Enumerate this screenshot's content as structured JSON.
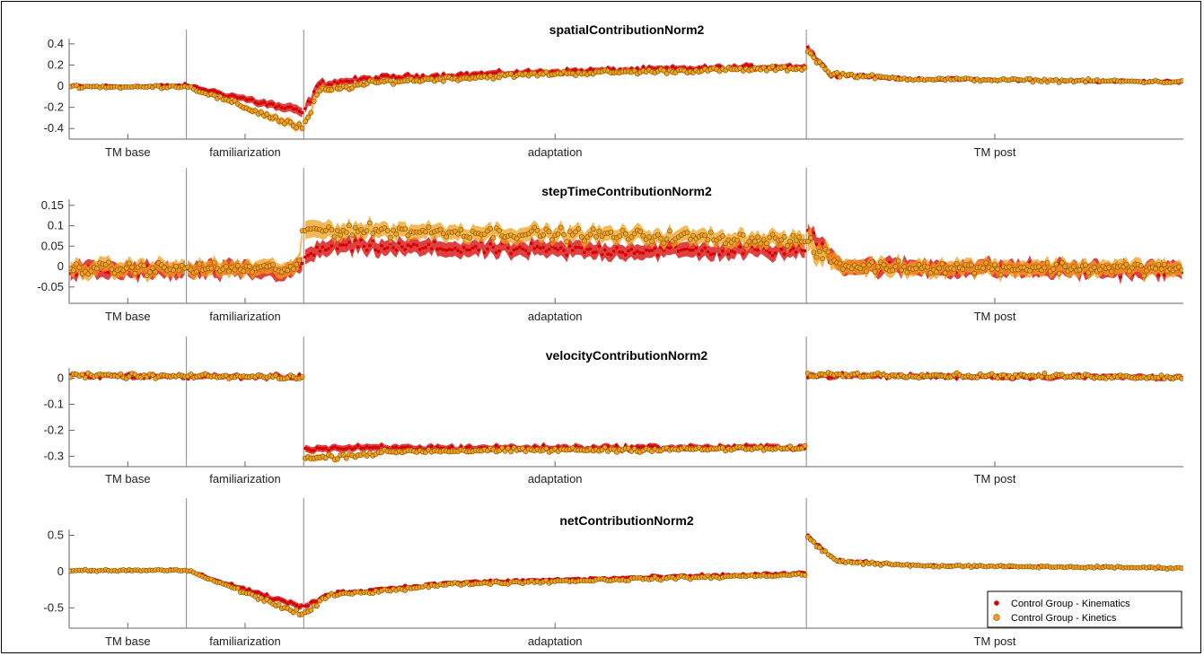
{
  "chart_data": [
    {
      "type": "scatter",
      "title": "spatialContributionNorm2",
      "ylim": [
        -0.5,
        0.45
      ],
      "yticks": [
        -0.4,
        -0.2,
        0,
        0.2,
        0.4
      ],
      "ytick_labels": [
        "-0.4",
        "-0.2",
        "0",
        "0.2",
        "0.4"
      ],
      "conditions": [
        "TM base",
        "familiarization",
        "adaptation",
        "TM post"
      ],
      "condition_strides": [
        140,
        140,
        600,
        450
      ],
      "series": [
        {
          "name": "Control Group - Kinematics",
          "color": "#d40000",
          "profile": [
            [
              0,
              0.0,
              0.02
            ],
            [
              0.5,
              0.0,
              0.02
            ],
            [
              0.7,
              0.0,
              0.02
            ],
            [
              1.0,
              0.01,
              0.02
            ],
            [
              2,
              -0.25,
              0.05
            ],
            [
              2.03,
              0.02,
              0.04
            ],
            [
              2.15,
              0.08,
              0.03
            ],
            [
              2.5,
              0.14,
              0.03
            ],
            [
              3.0,
              0.19,
              0.03
            ],
            [
              3.0,
              0.38,
              0.04
            ],
            [
              3.06,
              0.12,
              0.03
            ],
            [
              3.25,
              0.07,
              0.02
            ],
            [
              4.0,
              0.04,
              0.02
            ]
          ]
        },
        {
          "name": "Control Group - Kinetics",
          "color": "#f0a020",
          "profile": [
            [
              0,
              0.0,
              0.02
            ],
            [
              0.5,
              -0.01,
              0.02
            ],
            [
              1.0,
              0.0,
              0.02
            ],
            [
              2,
              -0.4,
              0.05
            ],
            [
              2.03,
              -0.05,
              0.04
            ],
            [
              2.15,
              0.04,
              0.03
            ],
            [
              2.5,
              0.12,
              0.03
            ],
            [
              3.0,
              0.17,
              0.03
            ],
            [
              3.0,
              0.35,
              0.04
            ],
            [
              3.06,
              0.12,
              0.03
            ],
            [
              3.25,
              0.07,
              0.02
            ],
            [
              4.0,
              0.04,
              0.02
            ]
          ]
        }
      ]
    },
    {
      "type": "scatter",
      "title": "stepTimeContributionNorm2",
      "ylim": [
        -0.09,
        0.165
      ],
      "yticks": [
        -0.05,
        0,
        0.05,
        0.1,
        0.15
      ],
      "ytick_labels": [
        "-0.05",
        "0",
        "0.05",
        "0.1",
        "0.15"
      ],
      "conditions": [
        "TM base",
        "familiarization",
        "adaptation",
        "TM post"
      ],
      "condition_strides": [
        140,
        140,
        600,
        450
      ],
      "series": [
        {
          "name": "Control Group - Kinematics",
          "color": "#d40000",
          "profile": [
            [
              0,
              -0.01,
              0.02
            ],
            [
              1.0,
              -0.01,
              0.02
            ],
            [
              1.95,
              -0.01,
              0.02
            ],
            [
              2,
              0.02,
              0.02
            ],
            [
              2.05,
              0.05,
              0.02
            ],
            [
              2.5,
              0.04,
              0.02
            ],
            [
              3.0,
              0.04,
              0.02
            ],
            [
              3.0,
              0.09,
              0.02
            ],
            [
              3.1,
              0.0,
              0.02
            ],
            [
              4.0,
              -0.01,
              0.02
            ]
          ]
        },
        {
          "name": "Control Group - Kinetics",
          "color": "#f0a020",
          "profile": [
            [
              0,
              -0.005,
              0.02
            ],
            [
              1.0,
              -0.005,
              0.02
            ],
            [
              1.95,
              -0.005,
              0.02
            ],
            [
              2,
              0.09,
              0.025
            ],
            [
              2.1,
              0.09,
              0.02
            ],
            [
              2.5,
              0.08,
              0.02
            ],
            [
              3.0,
              0.065,
              0.02
            ],
            [
              3.0,
              0.05,
              0.03
            ],
            [
              3.1,
              0.0,
              0.02
            ],
            [
              4.0,
              -0.005,
              0.02
            ]
          ]
        }
      ]
    },
    {
      "type": "scatter",
      "title": "velocityContributionNorm2",
      "ylim": [
        -0.34,
        0.04
      ],
      "yticks": [
        -0.3,
        -0.2,
        -0.1,
        0
      ],
      "ytick_labels": [
        "-0.3",
        "-0.2",
        "-0.1",
        "0"
      ],
      "conditions": [
        "TM base",
        "familiarization",
        "adaptation",
        "TM post"
      ],
      "condition_strides": [
        140,
        140,
        600,
        450
      ],
      "series": [
        {
          "name": "Control Group - Kinematics",
          "color": "#d40000",
          "profile": [
            [
              0,
              0.01,
              0.012
            ],
            [
              2.0,
              0.005,
              0.012
            ],
            [
              2,
              -0.27,
              0.015
            ],
            [
              3.0,
              -0.265,
              0.012
            ],
            [
              3.0,
              0.01,
              0.012
            ],
            [
              4.0,
              0.005,
              0.012
            ]
          ]
        },
        {
          "name": "Control Group - Kinetics",
          "color": "#f0a020",
          "profile": [
            [
              0,
              0.01,
              0.012
            ],
            [
              2.0,
              0.005,
              0.012
            ],
            [
              2,
              -0.31,
              0.015
            ],
            [
              2.2,
              -0.28,
              0.012
            ],
            [
              3.0,
              -0.27,
              0.012
            ],
            [
              3.0,
              0.015,
              0.012
            ],
            [
              4.0,
              0.005,
              0.012
            ]
          ]
        }
      ]
    },
    {
      "type": "scatter",
      "title": "netContributionNorm2",
      "ylim": [
        -0.78,
        0.58
      ],
      "yticks": [
        -0.5,
        0,
        0.5
      ],
      "ytick_labels": [
        "-0.5",
        "0",
        "0.5"
      ],
      "conditions": [
        "TM base",
        "familiarization",
        "adaptation",
        "TM post"
      ],
      "condition_strides": [
        140,
        140,
        600,
        450
      ],
      "series": [
        {
          "name": "Control Group - Kinematics",
          "color": "#d40000",
          "profile": [
            [
              0,
              0.01,
              0.02
            ],
            [
              1.0,
              0.02,
              0.02
            ],
            [
              2,
              -0.5,
              0.05
            ],
            [
              2.05,
              -0.3,
              0.03
            ],
            [
              2.3,
              -0.15,
              0.03
            ],
            [
              3.0,
              -0.02,
              0.03
            ],
            [
              3.0,
              0.5,
              0.04
            ],
            [
              3.08,
              0.15,
              0.03
            ],
            [
              3.3,
              0.08,
              0.02
            ],
            [
              4.0,
              0.05,
              0.02
            ]
          ]
        },
        {
          "name": "Control Group - Kinetics",
          "color": "#f0a020",
          "profile": [
            [
              0,
              0.01,
              0.02
            ],
            [
              1.0,
              0.02,
              0.02
            ],
            [
              2,
              -0.6,
              0.05
            ],
            [
              2.05,
              -0.33,
              0.03
            ],
            [
              2.3,
              -0.17,
              0.03
            ],
            [
              3.0,
              -0.04,
              0.03
            ],
            [
              3.0,
              0.48,
              0.04
            ],
            [
              3.08,
              0.14,
              0.03
            ],
            [
              3.3,
              0.08,
              0.02
            ],
            [
              4.0,
              0.05,
              0.02
            ]
          ]
        }
      ]
    }
  ],
  "legend": {
    "placement": "bottom-right",
    "entries": [
      "Control Group - Kinematics",
      "Control Group - Kinetics"
    ]
  },
  "colors": {
    "kinematics": "#d40000",
    "kinetics": "#f0a020",
    "frame": "#000000",
    "condition_divider": "#888888"
  }
}
